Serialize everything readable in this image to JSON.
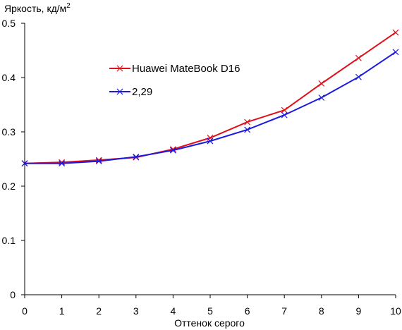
{
  "chart_data": {
    "type": "line",
    "ylabel": "Яркость, кд/м",
    "ylabel_sup": "2",
    "xlabel": "Оттенок серого",
    "x": [
      0,
      1,
      2,
      3,
      4,
      5,
      6,
      7,
      8,
      9,
      10
    ],
    "xlim": [
      0,
      10
    ],
    "ylim": [
      0,
      0.5
    ],
    "yticks": [
      0,
      0.1,
      0.2,
      0.3,
      0.4,
      0.5
    ],
    "ytick_labels": [
      "0",
      "0.1",
      "0.2",
      "0.3",
      "0.4",
      "0.5"
    ],
    "grid": false,
    "legend_position": "upper-left inside plot",
    "series": [
      {
        "name": "Huawei MateBook D16",
        "color": "#e0101a",
        "marker": "x",
        "values": [
          0.242,
          0.244,
          0.248,
          0.253,
          0.268,
          0.289,
          0.318,
          0.34,
          0.389,
          0.436,
          0.483
        ]
      },
      {
        "name": "2,29",
        "color": "#1a1ae0",
        "marker": "x",
        "values": [
          0.242,
          0.242,
          0.246,
          0.254,
          0.266,
          0.283,
          0.304,
          0.331,
          0.363,
          0.401,
          0.447
        ]
      }
    ]
  }
}
